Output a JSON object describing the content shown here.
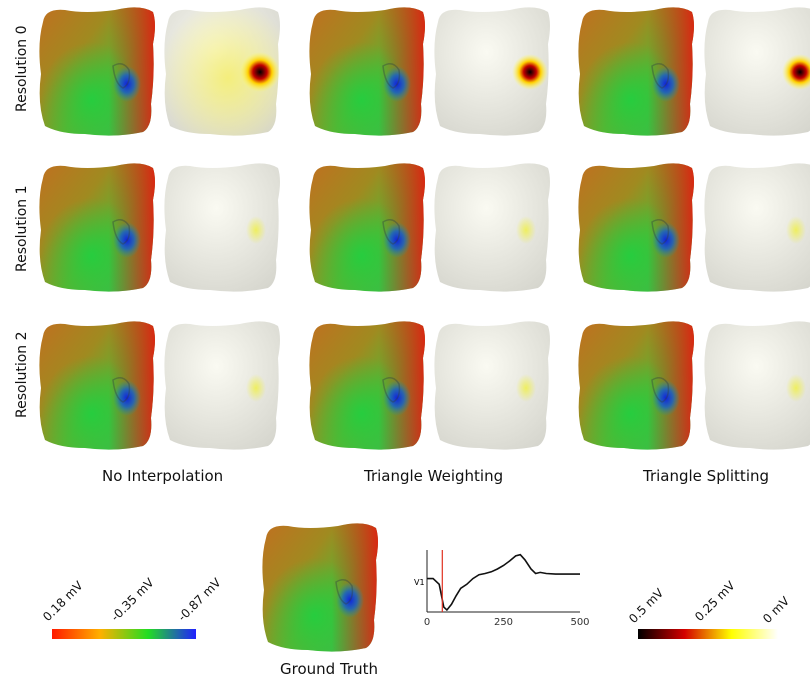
{
  "rows": [
    "Resolution 0",
    "Resolution 1",
    "Resolution 2"
  ],
  "columns": [
    "No Interpolation",
    "Triangle Weighting",
    "Triangle Splitting"
  ],
  "ground_truth_label": "Ground Truth",
  "potential_colorbar": {
    "ticks": [
      "0.18 mV",
      "-0.35 mV",
      "-0.87 mV"
    ],
    "colors": [
      "#ff1a00",
      "#ffb000",
      "#22dd22",
      "#2020ff"
    ]
  },
  "error_colorbar": {
    "ticks": [
      "0.5 mV",
      "0.25 mV",
      "0 mV"
    ],
    "colors": [
      "#000000",
      "#d40000",
      "#ffff00",
      "#ffffff"
    ]
  },
  "chart_data": {
    "type": "line",
    "ylabel": "V1",
    "xticks": [
      0,
      250,
      500
    ],
    "xlim": [
      0,
      500
    ],
    "series": [
      {
        "x": [
          0,
          20,
          40,
          55,
          65,
          80,
          95,
          110,
          130,
          150,
          170,
          190,
          210,
          230,
          250,
          270,
          290,
          305,
          320,
          340,
          355,
          370,
          390,
          420,
          450,
          500
        ],
        "values": [
          0.55,
          0.55,
          0.45,
          0.05,
          0.0,
          0.1,
          0.25,
          0.38,
          0.45,
          0.55,
          0.62,
          0.64,
          0.67,
          0.72,
          0.78,
          0.86,
          0.95,
          0.97,
          0.88,
          0.72,
          0.64,
          0.66,
          0.64,
          0.63,
          0.63,
          0.63
        ]
      }
    ],
    "marker_x": 50,
    "marker_color": "#e03020"
  }
}
